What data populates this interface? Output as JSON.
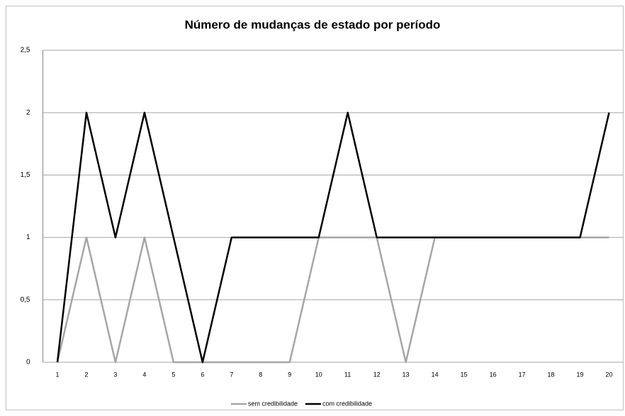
{
  "chart_data": {
    "type": "line",
    "title": "Número de mudanças de estado por período",
    "categories": [
      "1",
      "2",
      "3",
      "4",
      "5",
      "6",
      "7",
      "8",
      "9",
      "10",
      "11",
      "12",
      "13",
      "14",
      "15",
      "16",
      "17",
      "18",
      "19",
      "20"
    ],
    "series": [
      {
        "name": "sem credibilidade",
        "color": "#a6a6a6",
        "values": [
          0,
          1,
          0,
          1,
          0,
          0,
          0,
          0,
          0,
          1,
          1,
          1,
          0,
          1,
          1,
          1,
          1,
          1,
          1,
          1
        ]
      },
      {
        "name": "com credibilidade",
        "color": "#000000",
        "values": [
          0,
          2,
          1,
          2,
          1,
          0,
          1,
          1,
          1,
          1,
          2,
          1,
          1,
          1,
          1,
          1,
          1,
          1,
          1,
          2
        ]
      }
    ],
    "ylim": [
      0,
      2.5
    ],
    "yticks": [
      0,
      {
        "value": 0.5,
        "label": "0,5"
      },
      1,
      {
        "value": 1.5,
        "label": "1,5"
      },
      2,
      {
        "value": 2.5,
        "label": "2,5"
      }
    ],
    "grid": true,
    "legend": "bottom"
  }
}
